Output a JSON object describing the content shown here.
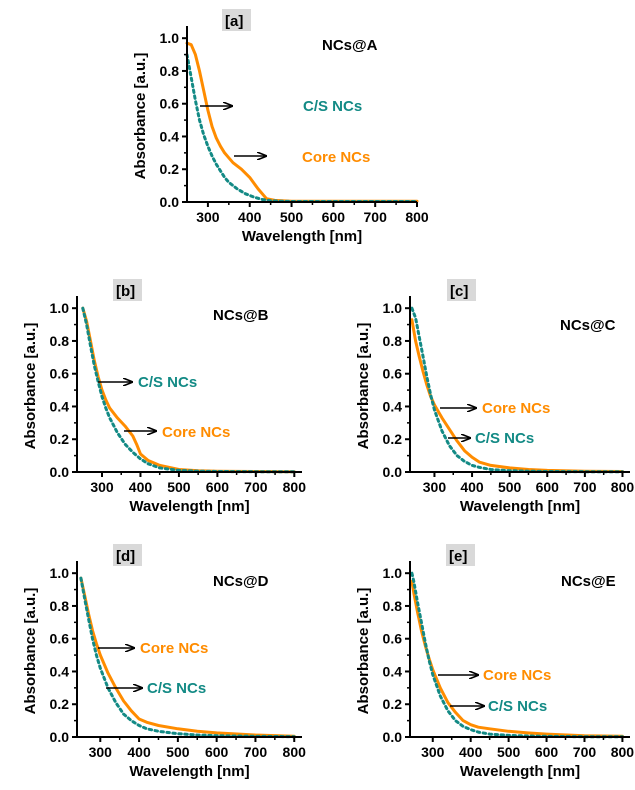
{
  "colors": {
    "core": "#ff8c00",
    "cs": "#138a85",
    "axis": "#000000",
    "tag_bg": "#d9d9d9"
  },
  "chart_data": [
    {
      "type": "line",
      "panel": "[a]",
      "sample": "NCs@A",
      "xlabel": "Wavelength [nm]",
      "ylabel": "Absorbance [a.u.]",
      "xlim": [
        250,
        800
      ],
      "ylim": [
        0,
        1.05
      ],
      "xticks": [
        "300",
        "400",
        "500",
        "600",
        "700",
        "800"
      ],
      "yticks": [
        "0.0",
        "0.2",
        "0.4",
        "0.6",
        "0.8",
        "1.0"
      ],
      "series": [
        {
          "name": "Core NCs",
          "style": "solid",
          "x": [
            250,
            260,
            270,
            280,
            290,
            300,
            310,
            320,
            330,
            340,
            350,
            360,
            380,
            400,
            420,
            440,
            460,
            500,
            600,
            700,
            800
          ],
          "y": [
            0.97,
            0.96,
            0.9,
            0.8,
            0.68,
            0.56,
            0.46,
            0.39,
            0.34,
            0.3,
            0.27,
            0.24,
            0.2,
            0.15,
            0.08,
            0.02,
            0.01,
            0.005,
            0.005,
            0.005,
            0.005
          ]
        },
        {
          "name": "C/S NCs",
          "style": "dotted",
          "x": [
            250,
            260,
            270,
            280,
            290,
            300,
            310,
            320,
            330,
            340,
            350,
            370,
            390,
            410,
            430,
            450,
            470,
            500,
            600,
            700,
            800
          ],
          "y": [
            0.9,
            0.76,
            0.62,
            0.5,
            0.41,
            0.34,
            0.28,
            0.23,
            0.19,
            0.15,
            0.12,
            0.08,
            0.05,
            0.03,
            0.015,
            0.008,
            0.005,
            0.003,
            0.003,
            0.003,
            0.003
          ]
        }
      ],
      "annotations": [
        {
          "text": "C/S NCs",
          "series": "C/S NCs"
        },
        {
          "text": "Core NCs",
          "series": "Core NCs"
        }
      ]
    },
    {
      "type": "line",
      "panel": "[b]",
      "sample": "NCs@B",
      "xlabel": "Wavelength [nm]",
      "ylabel": "Absorbance [a.u.]",
      "xlim": [
        235,
        820
      ],
      "ylim": [
        0,
        1.05
      ],
      "xticks": [
        "300",
        "400",
        "500",
        "600",
        "700",
        "800"
      ],
      "yticks": [
        "0.0",
        "0.2",
        "0.4",
        "0.6",
        "0.8",
        "1.0"
      ],
      "series": [
        {
          "name": "Core NCs",
          "style": "solid",
          "x": [
            250,
            260,
            270,
            280,
            290,
            300,
            310,
            320,
            340,
            360,
            370,
            380,
            390,
            400,
            420,
            450,
            500,
            550,
            600,
            700,
            800
          ],
          "y": [
            1.0,
            0.92,
            0.8,
            0.68,
            0.58,
            0.5,
            0.44,
            0.39,
            0.33,
            0.28,
            0.25,
            0.22,
            0.17,
            0.11,
            0.07,
            0.04,
            0.015,
            0.008,
            0.005,
            0.003,
            0.002
          ]
        },
        {
          "name": "C/S NCs",
          "style": "dotted",
          "x": [
            250,
            260,
            270,
            280,
            290,
            300,
            310,
            320,
            340,
            360,
            380,
            400,
            420,
            450,
            500,
            550,
            600,
            700,
            800
          ],
          "y": [
            1.0,
            0.9,
            0.77,
            0.65,
            0.55,
            0.46,
            0.39,
            0.33,
            0.24,
            0.17,
            0.12,
            0.08,
            0.05,
            0.025,
            0.01,
            0.005,
            0.003,
            0.002,
            0.002
          ]
        }
      ],
      "annotations": [
        {
          "text": "C/S NCs",
          "series": "C/S NCs"
        },
        {
          "text": "Core NCs",
          "series": "Core NCs"
        }
      ]
    },
    {
      "type": "line",
      "panel": "[c]",
      "sample": "NCs@C",
      "xlabel": "Wavelength [nm]",
      "ylabel": "Absorbance [a.u.]",
      "xlim": [
        235,
        820
      ],
      "ylim": [
        0,
        1.05
      ],
      "xticks": [
        "300",
        "400",
        "500",
        "600",
        "700",
        "800"
      ],
      "yticks": [
        "0.0",
        "0.2",
        "0.4",
        "0.6",
        "0.8",
        "1.0"
      ],
      "series": [
        {
          "name": "Core NCs",
          "style": "solid",
          "x": [
            240,
            250,
            260,
            270,
            280,
            290,
            300,
            310,
            320,
            340,
            360,
            380,
            400,
            420,
            450,
            500,
            550,
            600,
            700,
            800
          ],
          "y": [
            0.93,
            0.8,
            0.7,
            0.61,
            0.53,
            0.46,
            0.41,
            0.37,
            0.33,
            0.26,
            0.19,
            0.13,
            0.09,
            0.06,
            0.04,
            0.025,
            0.015,
            0.01,
            0.005,
            0.003
          ]
        },
        {
          "name": "C/S NCs",
          "style": "dotted",
          "x": [
            240,
            250,
            260,
            270,
            280,
            290,
            300,
            320,
            340,
            360,
            380,
            400,
            420,
            450,
            500,
            550,
            600,
            700,
            800
          ],
          "y": [
            1.0,
            0.94,
            0.82,
            0.7,
            0.58,
            0.47,
            0.38,
            0.25,
            0.16,
            0.1,
            0.065,
            0.04,
            0.028,
            0.015,
            0.008,
            0.005,
            0.003,
            0.002,
            0.002
          ]
        }
      ],
      "annotations": [
        {
          "text": "Core NCs",
          "series": "Core NCs"
        },
        {
          "text": "C/S NCs",
          "series": "C/S NCs"
        }
      ]
    },
    {
      "type": "line",
      "panel": "[d]",
      "sample": "NCs@D",
      "xlabel": "Wavelength [nm]",
      "ylabel": "Absorbance [a.u.]",
      "xlim": [
        240,
        820
      ],
      "ylim": [
        0,
        1.05
      ],
      "xticks": [
        "300",
        "400",
        "500",
        "600",
        "700",
        "800"
      ],
      "yticks": [
        "0.0",
        "0.2",
        "0.4",
        "0.6",
        "0.8",
        "1.0"
      ],
      "series": [
        {
          "name": "Core NCs",
          "style": "solid",
          "x": [
            250,
            260,
            270,
            280,
            290,
            300,
            320,
            340,
            360,
            380,
            400,
            420,
            450,
            500,
            550,
            600,
            700,
            800
          ],
          "y": [
            0.97,
            0.86,
            0.75,
            0.65,
            0.57,
            0.5,
            0.39,
            0.3,
            0.22,
            0.16,
            0.11,
            0.09,
            0.07,
            0.05,
            0.035,
            0.025,
            0.012,
            0.005
          ]
        },
        {
          "name": "C/S NCs",
          "style": "dotted",
          "x": [
            250,
            260,
            270,
            280,
            290,
            300,
            320,
            340,
            360,
            380,
            400,
            420,
            450,
            500,
            550,
            600,
            700,
            800
          ],
          "y": [
            0.97,
            0.84,
            0.72,
            0.6,
            0.5,
            0.42,
            0.3,
            0.21,
            0.14,
            0.1,
            0.07,
            0.05,
            0.035,
            0.02,
            0.012,
            0.008,
            0.004,
            0.002
          ]
        }
      ],
      "annotations": [
        {
          "text": "Core NCs",
          "series": "Core NCs"
        },
        {
          "text": "C/S NCs",
          "series": "C/S NCs"
        }
      ]
    },
    {
      "type": "line",
      "panel": "[e]",
      "sample": "NCs@E",
      "xlabel": "Wavelength [nm]",
      "ylabel": "Absorbance [a.u.]",
      "xlim": [
        240,
        820
      ],
      "ylim": [
        0,
        1.05
      ],
      "xticks": [
        "300",
        "400",
        "500",
        "600",
        "700",
        "800"
      ],
      "yticks": [
        "0.0",
        "0.2",
        "0.4",
        "0.6",
        "0.8",
        "1.0"
      ],
      "series": [
        {
          "name": "Core NCs",
          "style": "solid",
          "x": [
            245,
            250,
            260,
            270,
            280,
            290,
            300,
            320,
            340,
            360,
            380,
            400,
            420,
            450,
            500,
            550,
            600,
            700,
            800
          ],
          "y": [
            0.95,
            0.88,
            0.76,
            0.65,
            0.56,
            0.48,
            0.41,
            0.3,
            0.21,
            0.15,
            0.1,
            0.075,
            0.06,
            0.05,
            0.035,
            0.025,
            0.018,
            0.008,
            0.004
          ]
        },
        {
          "name": "C/S NCs",
          "style": "dotted",
          "x": [
            245,
            250,
            260,
            270,
            280,
            290,
            300,
            320,
            340,
            360,
            380,
            400,
            420,
            450,
            500,
            550,
            600,
            700,
            800
          ],
          "y": [
            1.0,
            0.95,
            0.82,
            0.7,
            0.58,
            0.47,
            0.38,
            0.25,
            0.16,
            0.1,
            0.065,
            0.045,
            0.03,
            0.018,
            0.01,
            0.006,
            0.004,
            0.002,
            0.002
          ]
        }
      ],
      "annotations": [
        {
          "text": "Core NCs",
          "series": "Core NCs"
        },
        {
          "text": "C/S NCs",
          "series": "C/S NCs"
        }
      ]
    }
  ]
}
